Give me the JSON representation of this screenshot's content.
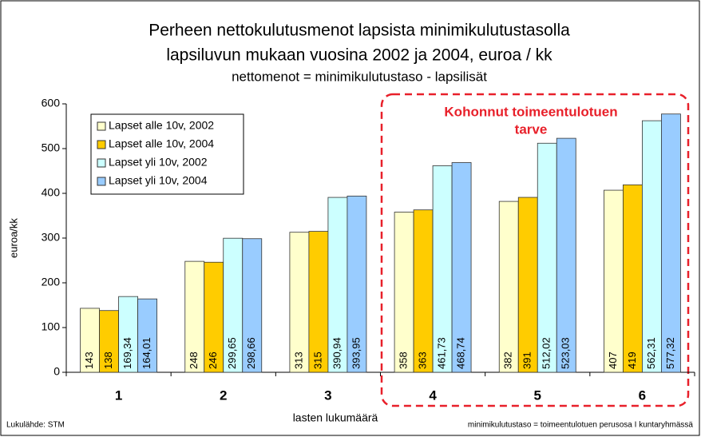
{
  "chart_data": {
    "type": "bar",
    "title": [
      "Perheen nettokulutusmenot lapsista minimikulutustasolla",
      "lapsiluvun mukaan vuosina 2002 ja 2004, euroa / kk"
    ],
    "subtitle": "nettomenot = minimikulutustaso - lapsilisät",
    "y_label": "euroa/kk",
    "x_label": "lasten lukumäärä",
    "source": "Lukulähde: STM",
    "footnote": "minimikulutustaso = toimeentulotuen perusosa I kuntaryhmässä",
    "annotation": [
      "Kohonnut toimeentulotuen",
      "tarve"
    ],
    "categories": [
      "1",
      "2",
      "3",
      "4",
      "5",
      "6"
    ],
    "series": [
      {
        "name": "Lapset alle 10v, 2002",
        "color": "#ffffcc",
        "values": [
          143,
          248,
          313,
          358,
          382,
          407
        ],
        "value_labels": [
          "143",
          "248",
          "313",
          "358",
          "382",
          "407"
        ]
      },
      {
        "name": "Lapset alle 10v, 2004",
        "color": "#ffcc00",
        "values": [
          138,
          246,
          315,
          363,
          391,
          419
        ],
        "value_labels": [
          "138",
          "246",
          "315",
          "363",
          "391",
          "419"
        ]
      },
      {
        "name": "Lapset yli 10v, 2002",
        "color": "#ccffff",
        "values": [
          169.34,
          299.65,
          390.94,
          461.73,
          512.02,
          562.31
        ],
        "value_labels": [
          "169,34",
          "299,65",
          "390,94",
          "461,73",
          "512,02",
          "562,31"
        ]
      },
      {
        "name": "Lapset yli 10v, 2004",
        "color": "#99ccff",
        "values": [
          164.01,
          298.66,
          393.95,
          468.74,
          523.03,
          577.32
        ],
        "value_labels": [
          "164,01",
          "298,66",
          "393,95",
          "468,74",
          "523,03",
          "577,32"
        ]
      }
    ],
    "ylim": [
      0,
      600
    ],
    "yticks": [
      0,
      100,
      200,
      300,
      400,
      500,
      600
    ],
    "legend": "upper left"
  }
}
